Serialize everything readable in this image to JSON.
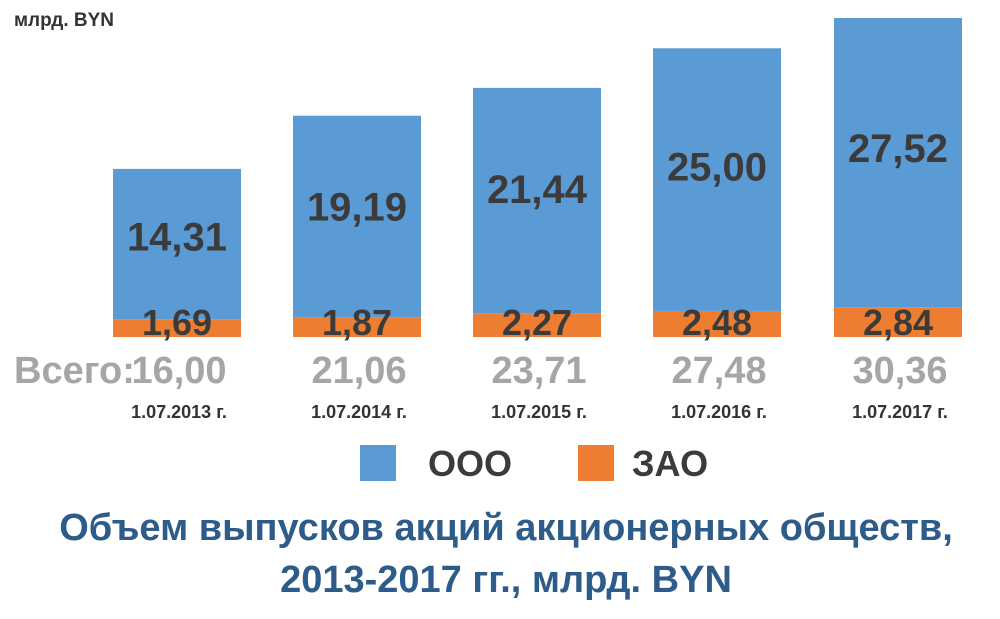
{
  "chart_data": {
    "type": "bar",
    "stacked": true,
    "unit_label": "млрд. BYN",
    "categories": [
      "1.07.2013 г.",
      "1.07.2014 г.",
      "1.07.2015 г.",
      "1.07.2016 г.",
      "1.07.2017 г."
    ],
    "series": [
      {
        "name": "ЗАО",
        "color": "#ed7d31",
        "values": [
          1.69,
          1.87,
          2.27,
          2.48,
          2.84
        ],
        "labels": [
          "1,69",
          "1,87",
          "2,27",
          "2,48",
          "2,84"
        ]
      },
      {
        "name": "ООО",
        "color": "#5b9bd5",
        "values": [
          14.31,
          19.19,
          21.44,
          25.0,
          27.52
        ],
        "labels": [
          "14,31",
          "19,19",
          "21,44",
          "25,00",
          "27,52"
        ]
      }
    ],
    "totals_label": "Всего:",
    "totals": [
      "16,00",
      "21,06",
      "23,71",
      "27,48",
      "30,36"
    ],
    "legend": [
      "ООО",
      "ЗАО"
    ],
    "legend_position": "bottom",
    "grid": false,
    "ylim": [
      0,
      30.36
    ],
    "title_lines": [
      "Объем выпусков акций акционерных обществ,",
      "2013-2017 гг., млрд. BYN"
    ]
  }
}
